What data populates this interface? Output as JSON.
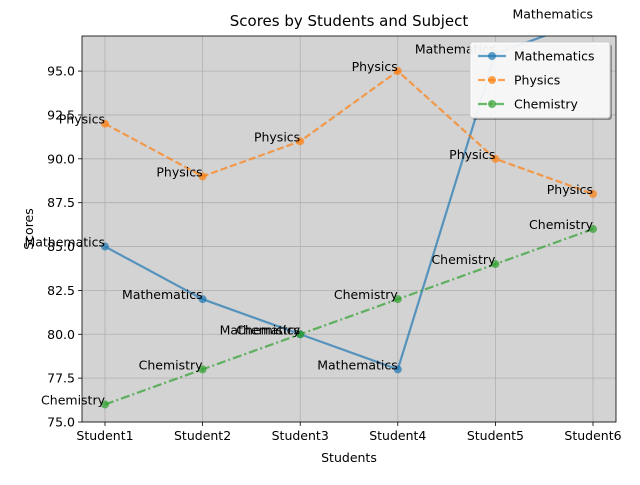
{
  "chart_data": {
    "type": "line",
    "title": "Scores by Students and Subject",
    "xlabel": "Students",
    "ylabel": "Scores",
    "categories": [
      "Student1",
      "Student2",
      "Student3",
      "Student4",
      "Student5",
      "Student6"
    ],
    "ylim": [
      75.0,
      97.0
    ],
    "yticks": [
      "75.0",
      "77.5",
      "80.0",
      "82.5",
      "85.0",
      "87.5",
      "90.0",
      "92.5",
      "95.0"
    ],
    "grid": true,
    "background": "#d3d3d3",
    "legend_position": "top-right",
    "series": [
      {
        "name": "Mathematics",
        "values": [
          85,
          82,
          80,
          78,
          96,
          98
        ],
        "color": "#1f77b4",
        "line_style": "solid",
        "point_labels": [
          "Mathematics",
          "Mathematics",
          "Mathematics",
          "Mathematics",
          "Mathematics",
          "Mathematics"
        ]
      },
      {
        "name": "Physics",
        "values": [
          92,
          89,
          91,
          95,
          90,
          88
        ],
        "color": "#ff7f0e",
        "line_style": "dashed",
        "point_labels": [
          "Physics",
          "Physics",
          "Physics",
          "Physics",
          "Physics",
          "Physics"
        ]
      },
      {
        "name": "Chemistry",
        "values": [
          76,
          78,
          80,
          82,
          84,
          86
        ],
        "color": "#2ca02c",
        "line_style": "dashdot",
        "point_labels": [
          "Chemistry",
          "Chemistry",
          "Chemistry",
          "Chemistry",
          "Chemistry",
          "Chemistry"
        ]
      }
    ]
  }
}
